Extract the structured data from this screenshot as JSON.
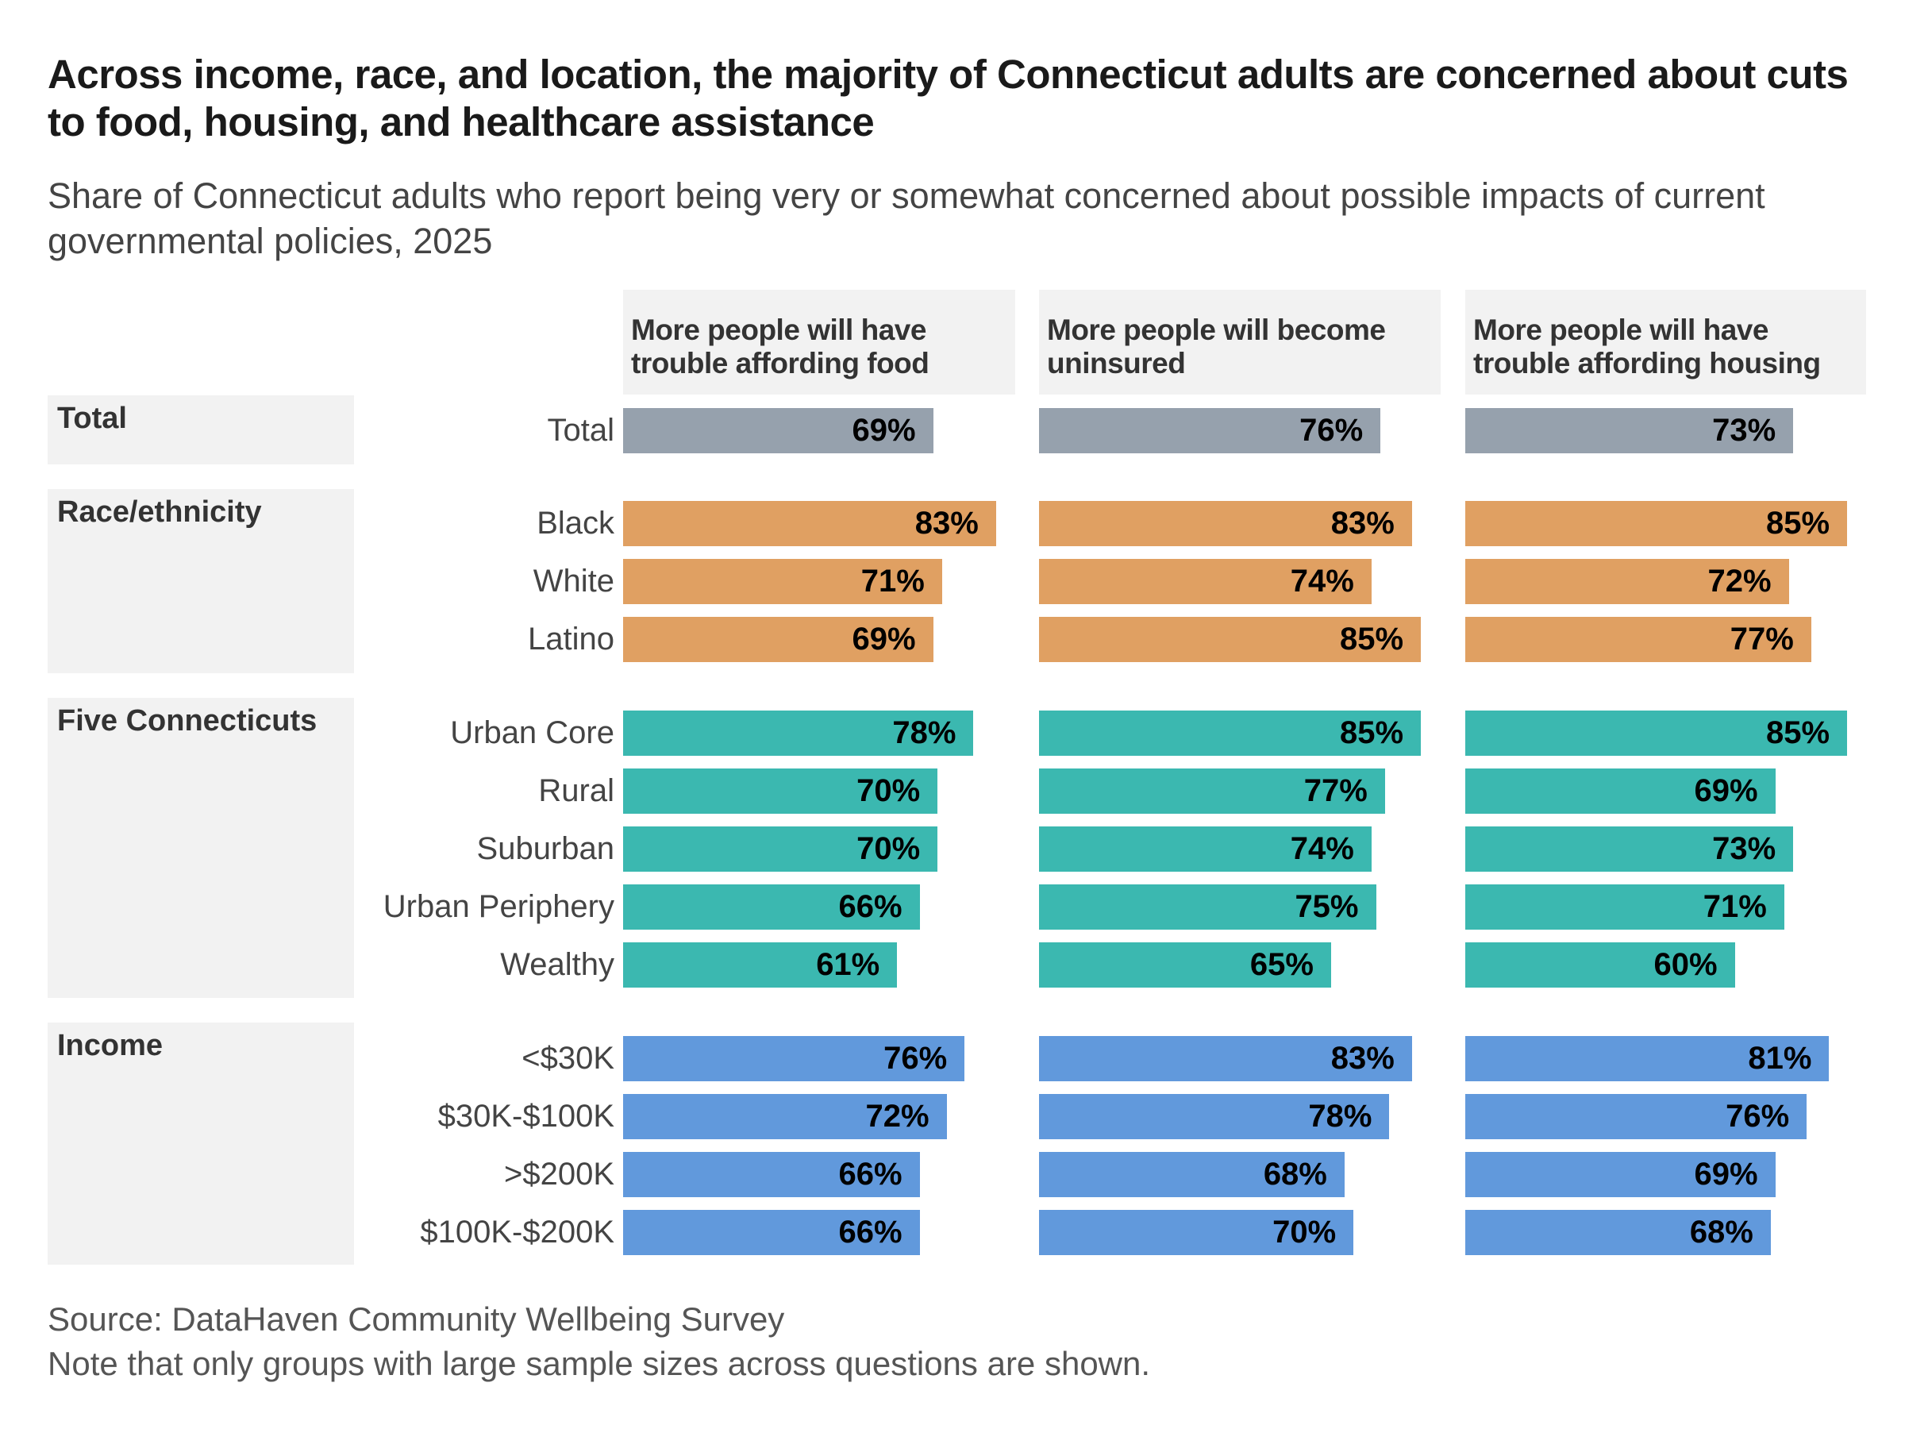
{
  "title": "Across income, race, and location, the majority of Connecticut adults are concerned about cuts to food, housing, and healthcare assistance",
  "subtitle": "Share of Connecticut adults who report being very or somewhat concerned about possible impacts of current governmental policies, 2025",
  "source": "Source: DataHaven Community Wellbeing Survey",
  "note": "Note that only groups with large sample sizes across questions are shown.",
  "chart_data": {
    "type": "bar",
    "orientation": "horizontal",
    "unit": "%",
    "panels": [
      "More people will have trouble affording food",
      "More people will become uninsured",
      "More people will have trouble affording housing"
    ],
    "groups": [
      {
        "name": "Total",
        "color": "#96a1ad",
        "rows": [
          {
            "label": "Total",
            "values": [
              69,
              76,
              73
            ]
          }
        ]
      },
      {
        "name": "Race/ethnicity",
        "color": "#e0a062",
        "rows": [
          {
            "label": "Black",
            "values": [
              83,
              83,
              85
            ]
          },
          {
            "label": "White",
            "values": [
              71,
              74,
              72
            ]
          },
          {
            "label": "Latino",
            "values": [
              69,
              85,
              77
            ]
          }
        ]
      },
      {
        "name": "Five Connecticuts",
        "color": "#3bb8b0",
        "rows": [
          {
            "label": "Urban Core",
            "values": [
              78,
              85,
              85
            ]
          },
          {
            "label": "Rural",
            "values": [
              70,
              77,
              69
            ]
          },
          {
            "label": "Suburban",
            "values": [
              70,
              74,
              73
            ]
          },
          {
            "label": "Urban Periphery",
            "values": [
              66,
              75,
              71
            ]
          },
          {
            "label": "Wealthy",
            "values": [
              61,
              65,
              60
            ]
          }
        ]
      },
      {
        "name": "Income",
        "color": "#6199dc",
        "rows": [
          {
            "label": "<$30K",
            "values": [
              76,
              83,
              81
            ]
          },
          {
            "label": "$30K-$100K",
            "values": [
              72,
              78,
              76
            ]
          },
          {
            "label": ">$200K",
            "values": [
              66,
              68,
              69
            ]
          },
          {
            "label": "$100K-$200K",
            "values": [
              66,
              70,
              68
            ]
          }
        ]
      }
    ]
  }
}
